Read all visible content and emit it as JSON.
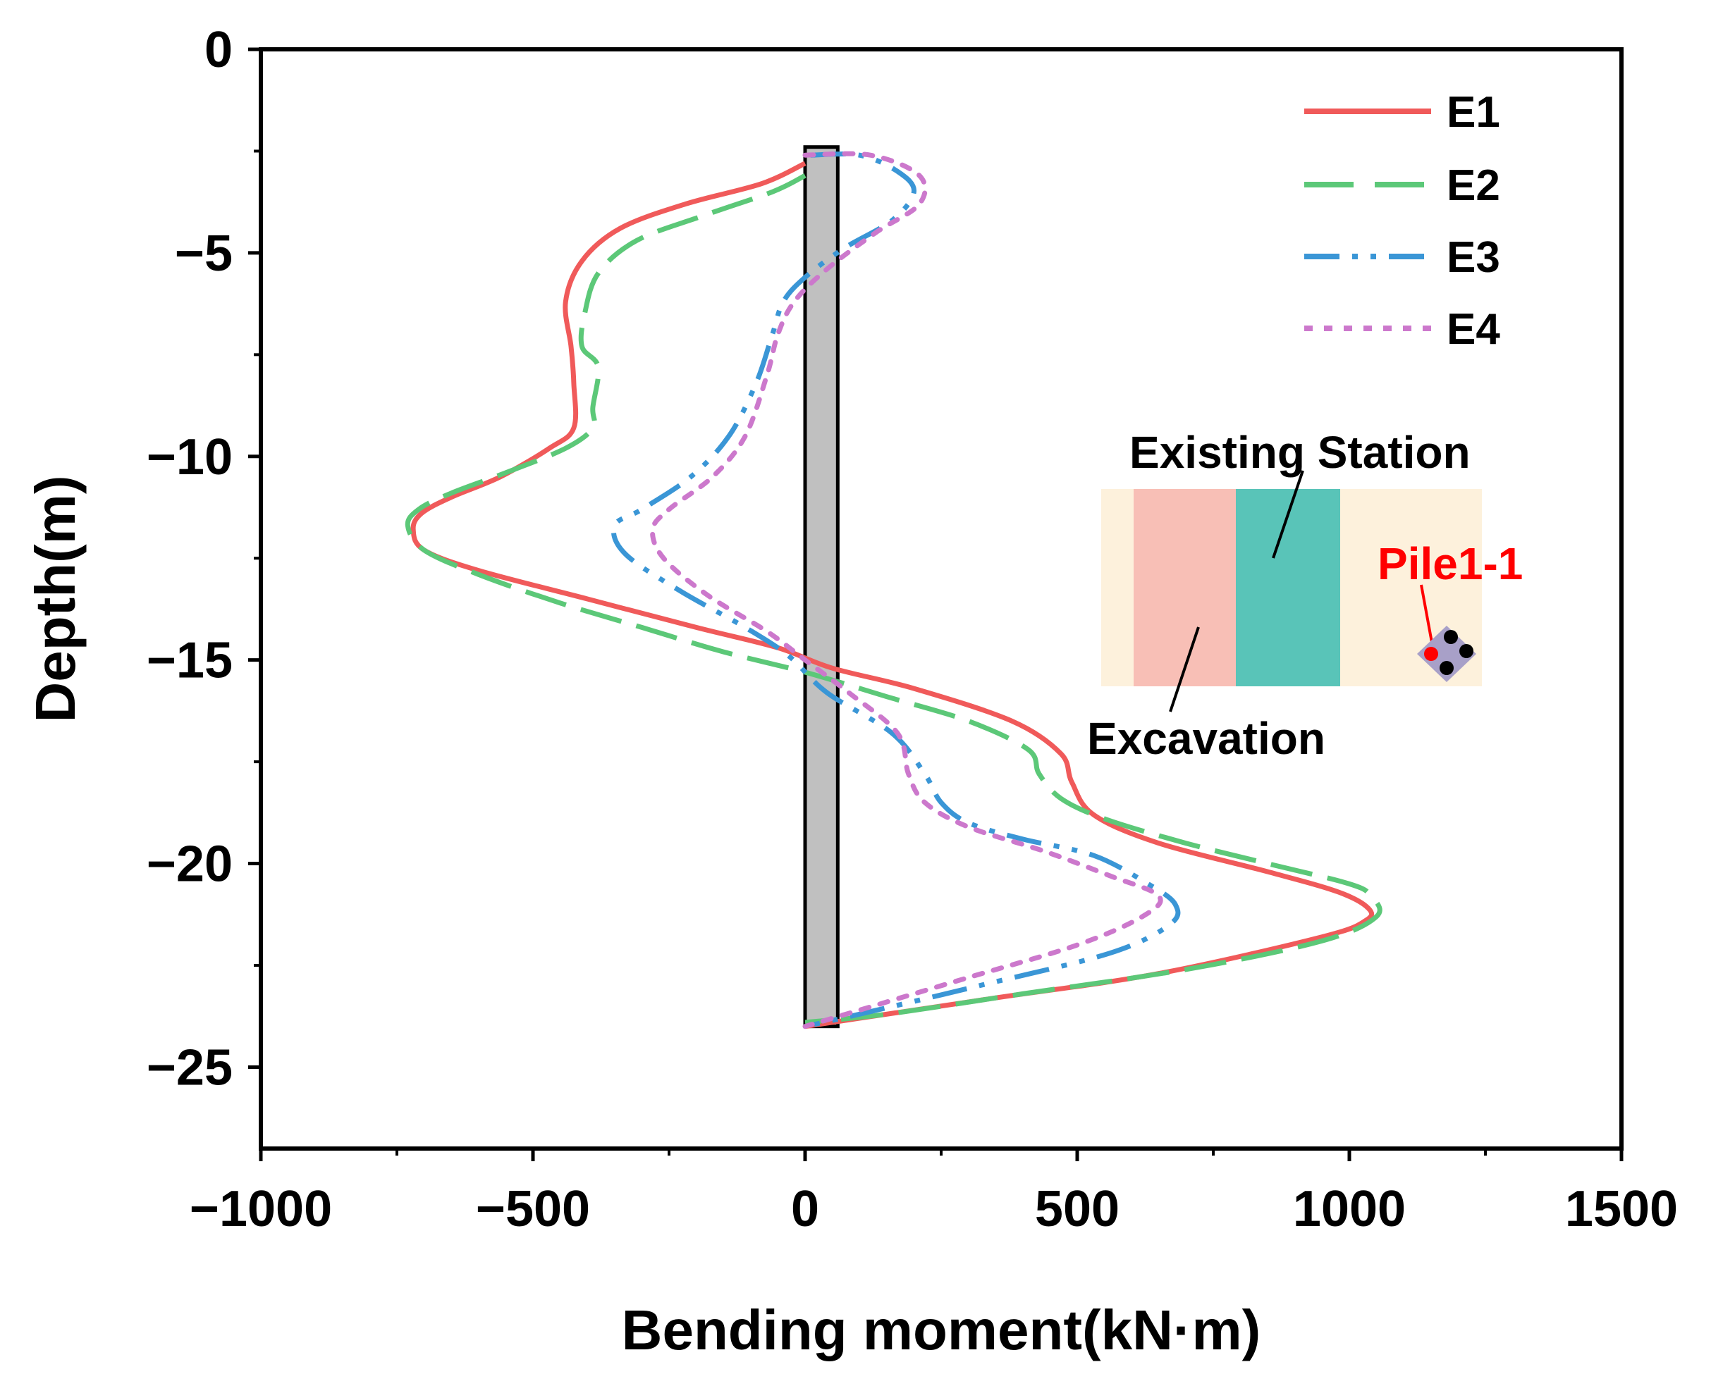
{
  "chart_data": {
    "type": "line",
    "title": "",
    "xlabel": "Bending moment(kN·m)",
    "ylabel": "Depth(m)",
    "xlim": [
      -1000,
      1500
    ],
    "ylim": [
      -27,
      0
    ],
    "xticks": [
      -1000,
      -500,
      0,
      500,
      1000,
      1500
    ],
    "yticks": [
      0,
      -5,
      -10,
      -15,
      -20,
      -25
    ],
    "xtick_labels": [
      "−1000",
      "−500",
      "0",
      "500",
      "1000",
      "1500"
    ],
    "ytick_labels": [
      "0",
      "−5",
      "−10",
      "−15",
      "−20",
      "−25"
    ],
    "legend_position": "top-right",
    "series": [
      {
        "name": "E1",
        "color": "#f05a5a",
        "dash": "solid",
        "points": [
          [
            0,
            -2.8
          ],
          [
            -80,
            -3.3
          ],
          [
            -220,
            -3.8
          ],
          [
            -340,
            -4.4
          ],
          [
            -410,
            -5.2
          ],
          [
            -440,
            -6.2
          ],
          [
            -430,
            -7.3
          ],
          [
            -425,
            -8.2
          ],
          [
            -425,
            -9.3
          ],
          [
            -470,
            -9.8
          ],
          [
            -560,
            -10.5
          ],
          [
            -650,
            -11.0
          ],
          [
            -705,
            -11.4
          ],
          [
            -720,
            -11.8
          ],
          [
            -700,
            -12.3
          ],
          [
            -600,
            -12.8
          ],
          [
            -400,
            -13.5
          ],
          [
            -200,
            -14.2
          ],
          [
            -50,
            -14.7
          ],
          [
            50,
            -15.2
          ],
          [
            200,
            -15.7
          ],
          [
            380,
            -16.5
          ],
          [
            470,
            -17.3
          ],
          [
            490,
            -18.0
          ],
          [
            530,
            -18.8
          ],
          [
            650,
            -19.5
          ],
          [
            850,
            -20.2
          ],
          [
            980,
            -20.7
          ],
          [
            1035,
            -21.1
          ],
          [
            1030,
            -21.4
          ],
          [
            950,
            -21.8
          ],
          [
            650,
            -22.7
          ],
          [
            350,
            -23.3
          ],
          [
            100,
            -23.8
          ],
          [
            0,
            -24.0
          ]
        ]
      },
      {
        "name": "E2",
        "color": "#5cc878",
        "dash": "long-dash",
        "points": [
          [
            0,
            -3.1
          ],
          [
            -60,
            -3.5
          ],
          [
            -190,
            -4.1
          ],
          [
            -310,
            -4.7
          ],
          [
            -380,
            -5.5
          ],
          [
            -405,
            -6.5
          ],
          [
            -410,
            -7.3
          ],
          [
            -380,
            -7.8
          ],
          [
            -390,
            -8.8
          ],
          [
            -390,
            -9.3
          ],
          [
            -440,
            -9.8
          ],
          [
            -550,
            -10.4
          ],
          [
            -650,
            -10.9
          ],
          [
            -710,
            -11.3
          ],
          [
            -730,
            -11.7
          ],
          [
            -700,
            -12.3
          ],
          [
            -600,
            -12.9
          ],
          [
            -450,
            -13.6
          ],
          [
            -300,
            -14.2
          ],
          [
            -150,
            -14.8
          ],
          [
            0,
            -15.3
          ],
          [
            150,
            -15.9
          ],
          [
            300,
            -16.5
          ],
          [
            410,
            -17.2
          ],
          [
            430,
            -17.8
          ],
          [
            470,
            -18.4
          ],
          [
            550,
            -18.9
          ],
          [
            700,
            -19.5
          ],
          [
            850,
            -20.0
          ],
          [
            1000,
            -20.5
          ],
          [
            1040,
            -20.8
          ],
          [
            1050,
            -21.3
          ],
          [
            950,
            -21.9
          ],
          [
            700,
            -22.6
          ],
          [
            400,
            -23.2
          ],
          [
            150,
            -23.7
          ],
          [
            0,
            -23.9
          ]
        ]
      },
      {
        "name": "E3",
        "color": "#3a96d6",
        "dash": "dash-dot-dot",
        "points": [
          [
            10,
            -2.6
          ],
          [
            100,
            -2.6
          ],
          [
            170,
            -3.0
          ],
          [
            200,
            -3.5
          ],
          [
            160,
            -4.2
          ],
          [
            70,
            -4.9
          ],
          [
            0,
            -5.6
          ],
          [
            -40,
            -6.2
          ],
          [
            -60,
            -7.0
          ],
          [
            -90,
            -8.2
          ],
          [
            -140,
            -9.5
          ],
          [
            -210,
            -10.5
          ],
          [
            -300,
            -11.3
          ],
          [
            -350,
            -11.7
          ],
          [
            -330,
            -12.4
          ],
          [
            -230,
            -13.3
          ],
          [
            -110,
            -14.2
          ],
          [
            -30,
            -14.9
          ],
          [
            40,
            -15.8
          ],
          [
            160,
            -16.8
          ],
          [
            220,
            -17.8
          ],
          [
            250,
            -18.5
          ],
          [
            300,
            -19.0
          ],
          [
            400,
            -19.4
          ],
          [
            530,
            -19.8
          ],
          [
            630,
            -20.5
          ],
          [
            680,
            -21.0
          ],
          [
            670,
            -21.5
          ],
          [
            560,
            -22.2
          ],
          [
            320,
            -23.0
          ],
          [
            100,
            -23.7
          ],
          [
            0,
            -24.0
          ]
        ]
      },
      {
        "name": "E4",
        "color": "#cc78cc",
        "dash": "dotted",
        "points": [
          [
            0,
            -2.6
          ],
          [
            120,
            -2.6
          ],
          [
            210,
            -3.1
          ],
          [
            210,
            -3.8
          ],
          [
            130,
            -4.5
          ],
          [
            40,
            -5.4
          ],
          [
            -20,
            -6.2
          ],
          [
            -50,
            -7.0
          ],
          [
            -70,
            -8.0
          ],
          [
            -110,
            -9.5
          ],
          [
            -170,
            -10.5
          ],
          [
            -250,
            -11.3
          ],
          [
            -280,
            -11.8
          ],
          [
            -260,
            -12.5
          ],
          [
            -180,
            -13.4
          ],
          [
            -70,
            -14.3
          ],
          [
            0,
            -15.0
          ],
          [
            80,
            -15.8
          ],
          [
            170,
            -16.8
          ],
          [
            190,
            -17.8
          ],
          [
            220,
            -18.5
          ],
          [
            300,
            -19.1
          ],
          [
            440,
            -19.7
          ],
          [
            560,
            -20.3
          ],
          [
            650,
            -20.8
          ],
          [
            620,
            -21.3
          ],
          [
            500,
            -22.0
          ],
          [
            300,
            -22.8
          ],
          [
            100,
            -23.6
          ],
          [
            0,
            -24.0
          ]
        ]
      }
    ],
    "annotations": {
      "pile_bar": {
        "x_range": [
          0,
          60
        ],
        "y_range": [
          -2.4,
          -24.0
        ],
        "fill": "#c0c0c0"
      },
      "inset": {
        "existing_station": "Existing Station",
        "excavation": "Excavation",
        "pile_label": "Pile1-1",
        "colors": {
          "soil": "#fdf1dc",
          "excavation": "#f8bfb6",
          "station": "#59c4b8",
          "pile_label": "#ff0000",
          "pile_cap": "#a8a0c8"
        }
      }
    }
  }
}
